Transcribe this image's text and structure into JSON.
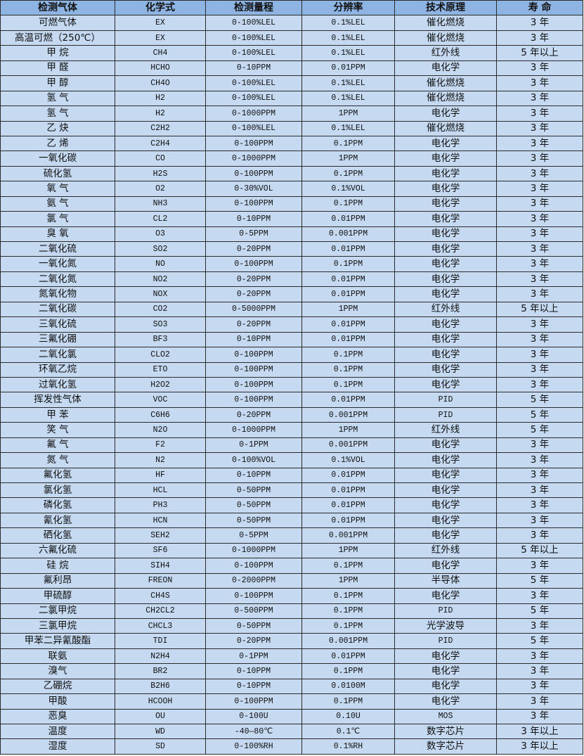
{
  "colors": {
    "header_bg": "#8db4e2",
    "row_bg": "#c5d9f1",
    "border": "#2b2b2b"
  },
  "headers": [
    "检测气体",
    "化学式",
    "检测量程",
    "分辨率",
    "技术原理",
    "寿 命"
  ],
  "rows": [
    [
      "可燃气体",
      "EX",
      "0-100%LEL",
      "0.1%LEL",
      "催化燃烧",
      "3 年"
    ],
    [
      "高温可燃（250℃）",
      "EX",
      "0-100%LEL",
      "0.1%LEL",
      "催化燃烧",
      "3 年"
    ],
    [
      "甲 烷",
      "CH4",
      "0-100%LEL",
      "0.1%LEL",
      "红外线",
      "5 年以上"
    ],
    [
      "甲 醛",
      "HCHO",
      "0-10PPM",
      "0.01PPM",
      "电化学",
      "3 年"
    ],
    [
      "甲 醇",
      "CH4O",
      "0-100%LEL",
      "0.1%LEL",
      "催化燃烧",
      "3 年"
    ],
    [
      "氢 气",
      "H2",
      "0-100%LEL",
      "0.1%LEL",
      "催化燃烧",
      "3 年"
    ],
    [
      "氢 气",
      "H2",
      "0-1000PPM",
      "1PPM",
      "电化学",
      "3 年"
    ],
    [
      "乙 炔",
      "C2H2",
      "0-100%LEL",
      "0.1%LEL",
      "催化燃烧",
      "3 年"
    ],
    [
      "乙 烯",
      "C2H4",
      "0-100PPM",
      "0.1PPM",
      "电化学",
      "3 年"
    ],
    [
      "一氧化碳",
      "CO",
      "0-1000PPM",
      "1PPM",
      "电化学",
      "3 年"
    ],
    [
      "硫化氢",
      "H2S",
      "0-100PPM",
      "0.1PPM",
      "电化学",
      "3 年"
    ],
    [
      "氧 气",
      "O2",
      "0-30%VOL",
      "0.1%VOL",
      "电化学",
      "3 年"
    ],
    [
      "氨 气",
      "NH3",
      "0-100PPM",
      "0.1PPM",
      "电化学",
      "3 年"
    ],
    [
      "氯 气",
      "CL2",
      "0-10PPM",
      "0.01PPM",
      "电化学",
      "3 年"
    ],
    [
      "臭 氧",
      "O3",
      "0-5PPM",
      "0.001PPM",
      "电化学",
      "3 年"
    ],
    [
      "二氧化硫",
      "SO2",
      "0-20PPM",
      "0.01PPM",
      "电化学",
      "3 年"
    ],
    [
      "一氧化氮",
      "NO",
      "0-100PPM",
      "0.1PPM",
      "电化学",
      "3 年"
    ],
    [
      "二氧化氮",
      "NO2",
      "0-20PPM",
      "0.01PPM",
      "电化学",
      "3 年"
    ],
    [
      "氮氧化物",
      "NOX",
      "0-20PPM",
      "0.01PPM",
      "电化学",
      "3 年"
    ],
    [
      "二氧化碳",
      "CO2",
      "0-5000PPM",
      "1PPM",
      "红外线",
      "5 年以上"
    ],
    [
      "三氧化硫",
      "SO3",
      "0-20PPM",
      "0.01PPM",
      "电化学",
      "3 年"
    ],
    [
      "三氟化硼",
      "BF3",
      "0-10PPM",
      "0.01PPM",
      "电化学",
      "3 年"
    ],
    [
      "二氧化氯",
      "CLO2",
      "0-100PPM",
      "0.1PPM",
      "电化学",
      "3 年"
    ],
    [
      "环氧乙烷",
      "ETO",
      "0-100PPM",
      "0.1PPM",
      "电化学",
      "3 年"
    ],
    [
      "过氧化氢",
      "H2O2",
      "0-100PPM",
      "0.1PPM",
      "电化学",
      "3 年"
    ],
    [
      "挥发性气体",
      "VOC",
      "0-100PPM",
      "0.01PPM",
      "PID",
      "5 年"
    ],
    [
      "甲 苯",
      "C6H6",
      "0-20PPM",
      "0.001PPM",
      "PID",
      "5 年"
    ],
    [
      "笑 气",
      "N2O",
      "0-1000PPM",
      "1PPM",
      "红外线",
      "5 年"
    ],
    [
      "氟 气",
      "F2",
      "0-1PPM",
      "0.001PPM",
      "电化学",
      "3 年"
    ],
    [
      "氮 气",
      "N2",
      "0-100%VOL",
      "0.1%VOL",
      "电化学",
      "3 年"
    ],
    [
      "氟化氢",
      "HF",
      "0-10PPM",
      "0.01PPM",
      "电化学",
      "3 年"
    ],
    [
      "氯化氢",
      "HCL",
      "0-50PPM",
      "0.01PPM",
      "电化学",
      "3 年"
    ],
    [
      "磷化氢",
      "PH3",
      "0-50PPM",
      "0.01PPM",
      "电化学",
      "3 年"
    ],
    [
      "氰化氢",
      "HCN",
      "0-50PPM",
      "0.01PPM",
      "电化学",
      "3 年"
    ],
    [
      "硒化氢",
      "SEH2",
      "0-5PPM",
      "0.001PPM",
      "电化学",
      "3 年"
    ],
    [
      "六氟化硫",
      "SF6",
      "0-1000PPM",
      "1PPM",
      "红外线",
      "5 年以上"
    ],
    [
      "硅 烷",
      "SIH4",
      "0-100PPM",
      "0.1PPM",
      "电化学",
      "3 年"
    ],
    [
      "氟利昂",
      "FREON",
      "0-2000PPM",
      "1PPM",
      "半导体",
      "5 年"
    ],
    [
      "甲硫醇",
      "CH4S",
      "0-100PPM",
      "0.1PPM",
      "电化学",
      "3 年"
    ],
    [
      "二氯甲烷",
      "CH2CL2",
      "0-500PPM",
      "0.1PPM",
      "PID",
      "5 年"
    ],
    [
      "三氯甲烷",
      "CHCL3",
      "0-50PPM",
      "0.1PPM",
      "光学波导",
      "3 年"
    ],
    [
      "甲苯二异氰酸酯",
      "TDI",
      "0-20PPM",
      "0.001PPM",
      "PID",
      "5 年"
    ],
    [
      "联氨",
      "N2H4",
      "0-1PPM",
      "0.01PPM",
      "电化学",
      "3 年"
    ],
    [
      "溴气",
      "BR2",
      "0-10PPM",
      "0.1PPM",
      "电化学",
      "3 年"
    ],
    [
      "乙硼烷",
      "B2H6",
      "0-10PPM",
      "0.0100M",
      "电化学",
      "3 年"
    ],
    [
      "甲酸",
      "HCOOH",
      "0-100PPM",
      "0.1PPM",
      "电化学",
      "3 年"
    ],
    [
      "恶臭",
      "OU",
      "0-100U",
      "0.10U",
      "MOS",
      "3 年"
    ],
    [
      "温度",
      "WD",
      "-40—80℃",
      "0.1℃",
      "数字芯片",
      "3 年以上"
    ],
    [
      "湿度",
      "SD",
      "0-100%RH",
      "0.1%RH",
      "数字芯片",
      "3 年以上"
    ]
  ]
}
